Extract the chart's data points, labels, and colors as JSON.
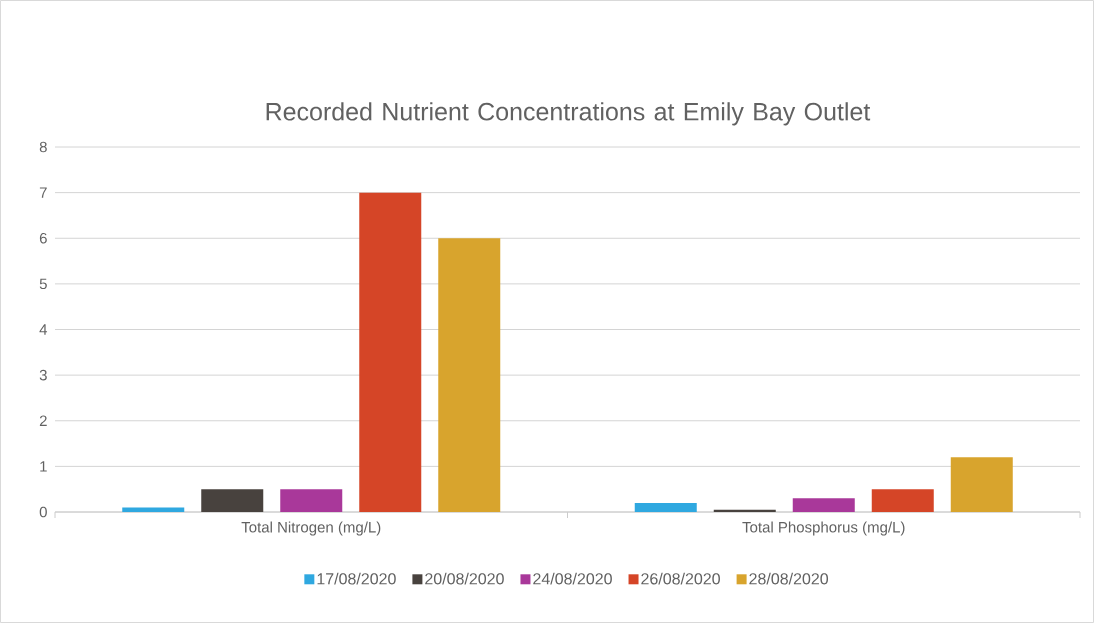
{
  "chart_data": {
    "type": "bar",
    "title": "Recorded Nutrient Concentrations at Emily Bay Outlet",
    "categories": [
      "Total Nitrogen (mg/L)",
      "Total Phosphorus (mg/L)"
    ],
    "series": [
      {
        "name": "17/08/2020",
        "color": "#2fa8e0",
        "values": [
          0.1,
          0.2
        ]
      },
      {
        "name": "20/08/2020",
        "color": "#48423e",
        "values": [
          0.5,
          0.05
        ]
      },
      {
        "name": "24/08/2020",
        "color": "#a9389a",
        "values": [
          0.5,
          0.3
        ]
      },
      {
        "name": "26/08/2020",
        "color": "#d54527",
        "values": [
          7,
          0.5
        ]
      },
      {
        "name": "28/08/2020",
        "color": "#d8a42d",
        "values": [
          6,
          1.2
        ]
      }
    ],
    "ylim": [
      0,
      8
    ],
    "yticks": [
      0,
      1,
      2,
      3,
      4,
      5,
      6,
      7,
      8
    ],
    "grid": "y",
    "legend": "bottom"
  }
}
